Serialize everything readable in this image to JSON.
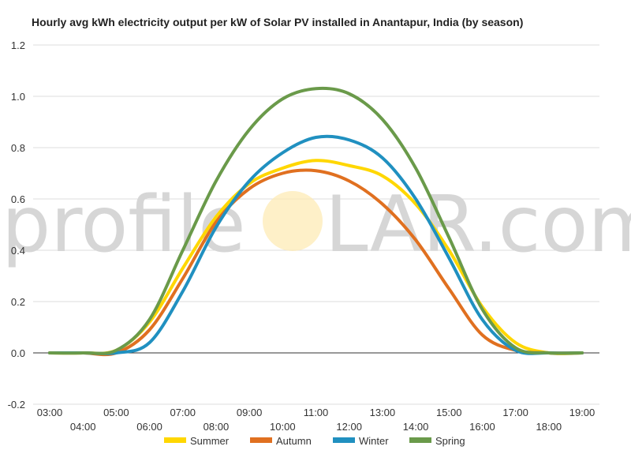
{
  "watermark": {
    "left_text": "profile",
    "right_text": "LAR.com"
  },
  "chart_data": {
    "type": "line",
    "title": "Hourly avg kWh electricity output per kW of Solar PV installed in Anantapur, India (by season)",
    "xlabel": "",
    "ylabel": "",
    "ylim": [
      -0.2,
      1.2
    ],
    "yticks": [
      -0.2,
      0.0,
      0.2,
      0.4,
      0.6,
      0.8,
      1.0,
      1.2
    ],
    "ytick_labels": [
      "-0.2",
      "0.0",
      "0.2",
      "0.4",
      "0.6",
      "0.8",
      "1.0",
      "1.2"
    ],
    "x_categories": [
      "03:00",
      "04:00",
      "05:00",
      "06:00",
      "07:00",
      "08:00",
      "09:00",
      "10:00",
      "11:00",
      "12:00",
      "13:00",
      "14:00",
      "15:00",
      "16:00",
      "17:00",
      "18:00",
      "19:00"
    ],
    "grid": true,
    "legend_position": "bottom",
    "series": [
      {
        "name": "Summer",
        "color": "#FFD700",
        "values": [
          0,
          0,
          0.01,
          0.12,
          0.33,
          0.53,
          0.66,
          0.72,
          0.75,
          0.73,
          0.69,
          0.58,
          0.4,
          0.18,
          0.04,
          0,
          0
        ]
      },
      {
        "name": "Autumn",
        "color": "#E07020",
        "values": [
          0,
          0,
          0,
          0.09,
          0.29,
          0.51,
          0.64,
          0.7,
          0.71,
          0.67,
          0.58,
          0.44,
          0.25,
          0.07,
          0.01,
          0,
          0
        ]
      },
      {
        "name": "Winter",
        "color": "#2090C0",
        "values": [
          0,
          0,
          0,
          0.04,
          0.24,
          0.49,
          0.67,
          0.78,
          0.84,
          0.83,
          0.76,
          0.6,
          0.37,
          0.13,
          0.01,
          0,
          0
        ]
      },
      {
        "name": "Spring",
        "color": "#6A9A4A",
        "values": [
          0,
          0,
          0.01,
          0.13,
          0.4,
          0.67,
          0.87,
          0.99,
          1.03,
          1.01,
          0.91,
          0.72,
          0.45,
          0.17,
          0.02,
          0,
          0
        ]
      }
    ]
  }
}
